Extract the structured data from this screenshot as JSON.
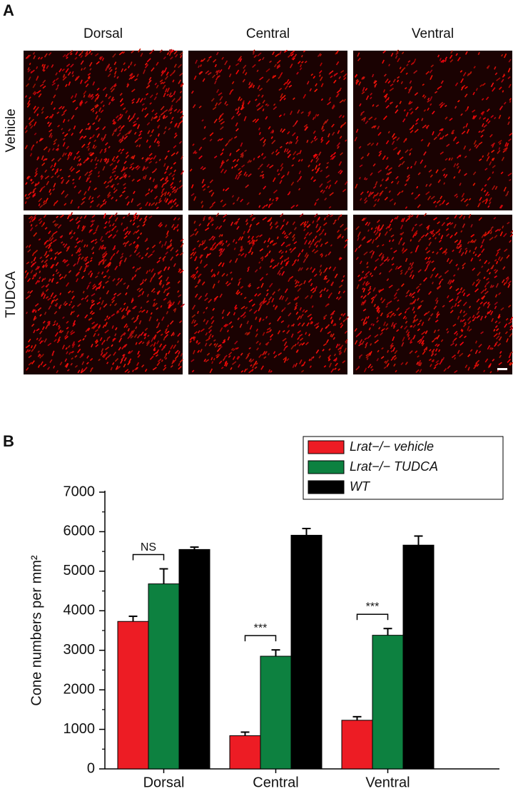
{
  "panel_a": {
    "label": "A",
    "columns": [
      "Dorsal",
      "Central",
      "Ventral"
    ],
    "rows": [
      "Vehicle",
      "TUDCA"
    ]
  },
  "panel_b": {
    "label": "B"
  },
  "chart_data": {
    "type": "bar",
    "y_label": "Cone numbers per mm²",
    "categories": [
      "Dorsal",
      "Central",
      "Ventral"
    ],
    "series": [
      {
        "name": "Lrat−/− vehicle",
        "color": "#ed1c24",
        "values": [
          3730,
          840,
          1230
        ],
        "errors": [
          130,
          90,
          90
        ]
      },
      {
        "name": "Lrat−/− TUDCA",
        "color": "#0d8140",
        "values": [
          4680,
          2850,
          3380
        ],
        "errors": [
          380,
          160,
          170
        ]
      },
      {
        "name": "WT",
        "color": "#000000",
        "values": [
          5550,
          5910,
          5660
        ],
        "errors": [
          60,
          170,
          230
        ]
      }
    ],
    "annotations": [
      "NS",
      "***",
      "***"
    ],
    "ylim": [
      0,
      7000
    ],
    "yticks": [
      0,
      1000,
      2000,
      3000,
      4000,
      5000,
      6000,
      7000
    ],
    "legend": "top-right"
  }
}
